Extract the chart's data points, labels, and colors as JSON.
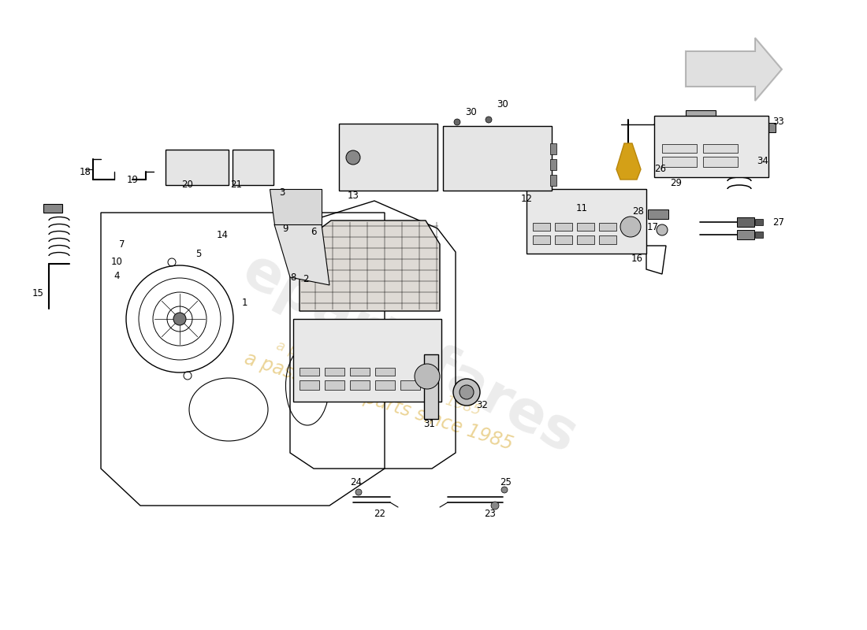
{
  "bg_color": "#ffffff",
  "watermark_color": "#d4a017",
  "line_color": "#000000",
  "part_labels": [
    [
      "1",
      310,
      415
    ],
    [
      "2",
      388,
      445
    ],
    [
      "3",
      358,
      555
    ],
    [
      "4",
      148,
      450
    ],
    [
      "5",
      252,
      478
    ],
    [
      "6",
      398,
      505
    ],
    [
      "7",
      155,
      490
    ],
    [
      "8",
      372,
      448
    ],
    [
      "9",
      362,
      510
    ],
    [
      "10",
      148,
      468
    ],
    [
      "11",
      738,
      535
    ],
    [
      "12",
      668,
      548
    ],
    [
      "13",
      448,
      552
    ],
    [
      "14",
      282,
      502
    ],
    [
      "15",
      48,
      428
    ],
    [
      "16",
      808,
      472
    ],
    [
      "17",
      828,
      512
    ],
    [
      "18",
      108,
      582
    ],
    [
      "19",
      168,
      572
    ],
    [
      "20",
      238,
      565
    ],
    [
      "21",
      300,
      565
    ],
    [
      "22",
      482,
      148
    ],
    [
      "23",
      622,
      148
    ],
    [
      "24",
      452,
      188
    ],
    [
      "25",
      642,
      188
    ],
    [
      "26",
      838,
      585
    ],
    [
      "27",
      988,
      518
    ],
    [
      "28",
      810,
      532
    ],
    [
      "29",
      858,
      568
    ],
    [
      "30",
      598,
      658
    ],
    [
      "30",
      638,
      668
    ],
    [
      "31",
      545,
      262
    ],
    [
      "32",
      612,
      285
    ],
    [
      "33",
      988,
      645
    ],
    [
      "34",
      968,
      595
    ]
  ]
}
